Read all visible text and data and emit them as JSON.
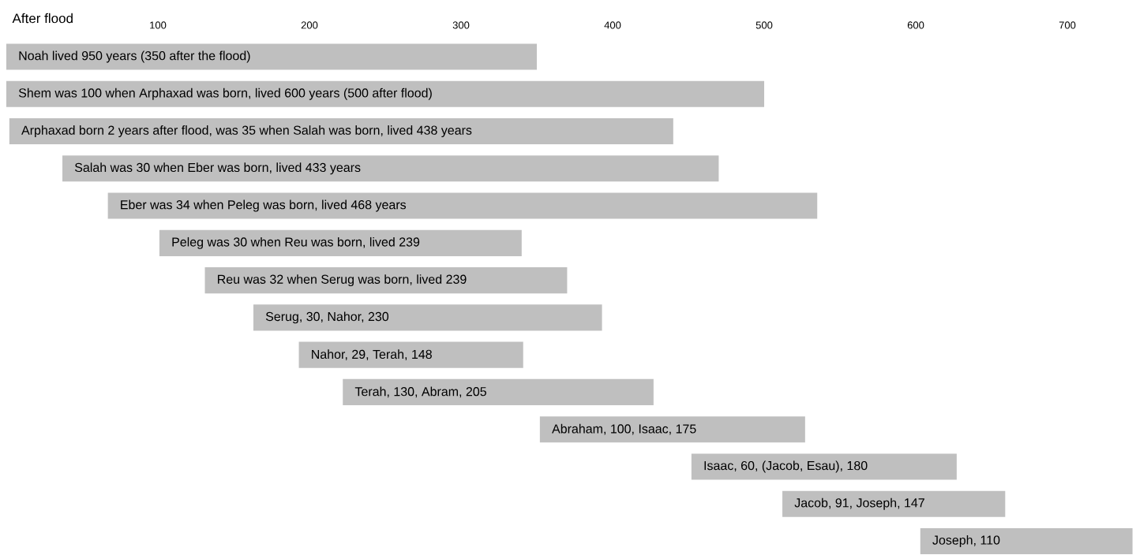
{
  "chart_data": {
    "type": "bar",
    "orientation": "horizontal",
    "xlabel": "After flood",
    "categories": [
      "Noah lived 950 years (350 after the flood)",
      "Shem was 100 when Arphaxad was born, lived 600 years (500 after flood)",
      "Arphaxad born 2 years after flood, was 35 when Salah was born, lived 438 years",
      "Salah was 30 when Eber was born, lived 433 years",
      "Eber was 34 when Peleg was born, lived 468 years",
      "Peleg was 30 when Reu was born, lived 239",
      "Reu was 32 when Serug was born, lived 239",
      "Serug, 30, Nahor, 230",
      "Nahor, 29, Terah, 148",
      "Terah, 130, Abram, 205",
      "Abraham, 100, Isaac, 175",
      "Isaac, 60, (Jacob, Esau), 180",
      "Jacob, 91, Joseph, 147",
      "Joseph, 110"
    ],
    "base": [
      0,
      0,
      2,
      37,
      67,
      101,
      131,
      163,
      193,
      222,
      352,
      452,
      512,
      603
    ],
    "values": [
      350,
      500,
      438,
      433,
      468,
      239,
      239,
      230,
      148,
      205,
      175,
      175,
      147,
      140
    ],
    "color": "#bfbfbf",
    "xlim": [
      0,
      743
    ],
    "xticks": [
      100,
      200,
      300,
      400,
      500,
      600,
      700
    ]
  }
}
